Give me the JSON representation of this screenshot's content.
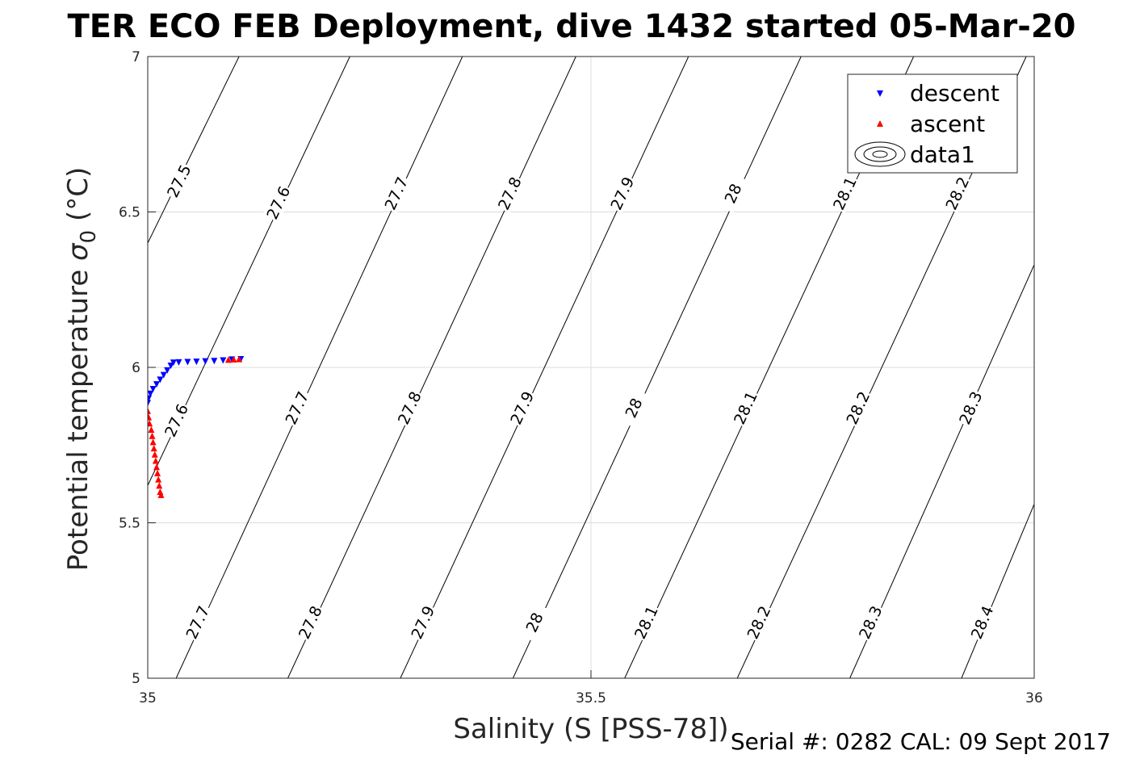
{
  "chart_data": {
    "type": "scatter",
    "title": "TER ECO FEB Deployment, dive 1432 started 05-Mar-20",
    "xlabel": "Salinity (S [PSS-78])",
    "ylabel_main": "Potential temperature ",
    "ylabel_symbol": "σ",
    "ylabel_subscript": "0",
    "ylabel_unit": " (°C)",
    "xlim": [
      35,
      36
    ],
    "ylim": [
      5,
      7
    ],
    "xticks": [
      35,
      35.5,
      36
    ],
    "xtick_labels": [
      "35",
      "35.5",
      "36"
    ],
    "yticks": [
      5,
      5.5,
      6,
      6.5,
      7
    ],
    "ytick_labels": [
      "5",
      "5.5",
      "6",
      "6.5",
      "7"
    ],
    "grid": true,
    "legend": {
      "location": "top-right",
      "entries": [
        {
          "label": "descent",
          "color": "#0000ff",
          "marker": "triangle-down"
        },
        {
          "label": "ascent",
          "color": "#ff0000",
          "marker": "triangle-up"
        },
        {
          "label": "data1",
          "color": "#000000",
          "marker": "contour"
        }
      ]
    },
    "series": [
      {
        "name": "descent",
        "color": "#0000ff",
        "marker": "triangle-down",
        "points": [
          [
            35.105,
            6.026
          ],
          [
            35.095,
            6.025
          ],
          [
            35.085,
            6.022
          ],
          [
            35.075,
            6.02
          ],
          [
            35.065,
            6.019
          ],
          [
            35.055,
            6.018
          ],
          [
            35.045,
            6.017
          ],
          [
            35.035,
            6.016
          ],
          [
            35.029,
            6.015
          ],
          [
            35.026,
            6.005
          ],
          [
            35.022,
            5.99
          ],
          [
            35.018,
            5.975
          ],
          [
            35.014,
            5.96
          ],
          [
            35.01,
            5.945
          ],
          [
            35.006,
            5.93
          ],
          [
            35.003,
            5.915
          ],
          [
            35.001,
            5.9
          ],
          [
            35.0,
            5.885
          ]
        ]
      },
      {
        "name": "ascent",
        "color": "#ff0000",
        "marker": "triangle-up",
        "points": [
          [
            35.103,
            6.027
          ],
          [
            35.097,
            6.026
          ],
          [
            35.091,
            6.025
          ],
          [
            35.0,
            5.86
          ],
          [
            35.001,
            5.84
          ],
          [
            35.002,
            5.82
          ],
          [
            35.004,
            5.8
          ],
          [
            35.005,
            5.78
          ],
          [
            35.006,
            5.76
          ],
          [
            35.007,
            5.74
          ],
          [
            35.008,
            5.72
          ],
          [
            35.009,
            5.7
          ],
          [
            35.01,
            5.68
          ],
          [
            35.011,
            5.66
          ],
          [
            35.012,
            5.64
          ],
          [
            35.013,
            5.62
          ],
          [
            35.014,
            5.6
          ],
          [
            35.015,
            5.59
          ]
        ]
      }
    ],
    "contours": {
      "levels": [
        {
          "value": "27.5",
          "line": [
            [
              35.0,
              6.4
            ],
            [
              35.103,
              7.0
            ]
          ],
          "labels": [
            [
              35.035,
              6.6
            ]
          ]
        },
        {
          "value": "27.6",
          "line": [
            [
              35.0,
              5.62
            ],
            [
              35.228,
              7.0
            ]
          ],
          "labels": [
            [
              35.032,
              5.83
            ],
            [
              35.147,
              6.53
            ]
          ]
        },
        {
          "value": "27.7",
          "line": [
            [
              35.032,
              5.0
            ],
            [
              35.355,
              7.0
            ]
          ],
          "labels": [
            [
              35.056,
              5.18
            ],
            [
              35.168,
              5.87
            ],
            [
              35.28,
              6.56
            ]
          ]
        },
        {
          "value": "27.8",
          "line": [
            [
              35.158,
              5.0
            ],
            [
              35.483,
              7.0
            ]
          ],
          "labels": [
            [
              35.183,
              5.18
            ],
            [
              35.295,
              5.87
            ],
            [
              35.408,
              6.56
            ]
          ]
        },
        {
          "value": "27.9",
          "line": [
            [
              35.285,
              5.0
            ],
            [
              35.61,
              7.0
            ]
          ],
          "labels": [
            [
              35.31,
              5.18
            ],
            [
              35.422,
              5.87
            ],
            [
              35.535,
              6.56
            ]
          ]
        },
        {
          "value": "28",
          "line": [
            [
              35.412,
              5.0
            ],
            [
              35.737,
              7.0
            ]
          ],
          "labels": [
            [
              35.436,
              5.18
            ],
            [
              35.548,
              5.87
            ],
            [
              35.66,
              6.56
            ]
          ]
        },
        {
          "value": "28.1",
          "line": [
            [
              35.538,
              5.0
            ],
            [
              35.864,
              7.0
            ]
          ],
          "labels": [
            [
              35.562,
              5.18
            ],
            [
              35.674,
              5.87
            ],
            [
              35.786,
              6.56
            ]
          ]
        },
        {
          "value": "28.2",
          "line": [
            [
              35.665,
              5.0
            ],
            [
              35.991,
              7.0
            ]
          ],
          "labels": [
            [
              35.689,
              5.18
            ],
            [
              35.801,
              5.87
            ],
            [
              35.913,
              6.56
            ]
          ]
        },
        {
          "value": "28.3",
          "line": [
            [
              35.792,
              5.0
            ],
            [
              36.0,
              6.33
            ]
          ],
          "labels": [
            [
              35.815,
              5.18
            ],
            [
              35.928,
              5.87
            ]
          ]
        },
        {
          "value": "28.4",
          "line": [
            [
              35.918,
              5.0
            ],
            [
              36.0,
              5.56
            ]
          ],
          "labels": [
            [
              35.941,
              5.18
            ]
          ]
        }
      ]
    }
  },
  "footer": {
    "serial": "Serial #: 0282  CAL: 09 Sept 2017"
  }
}
